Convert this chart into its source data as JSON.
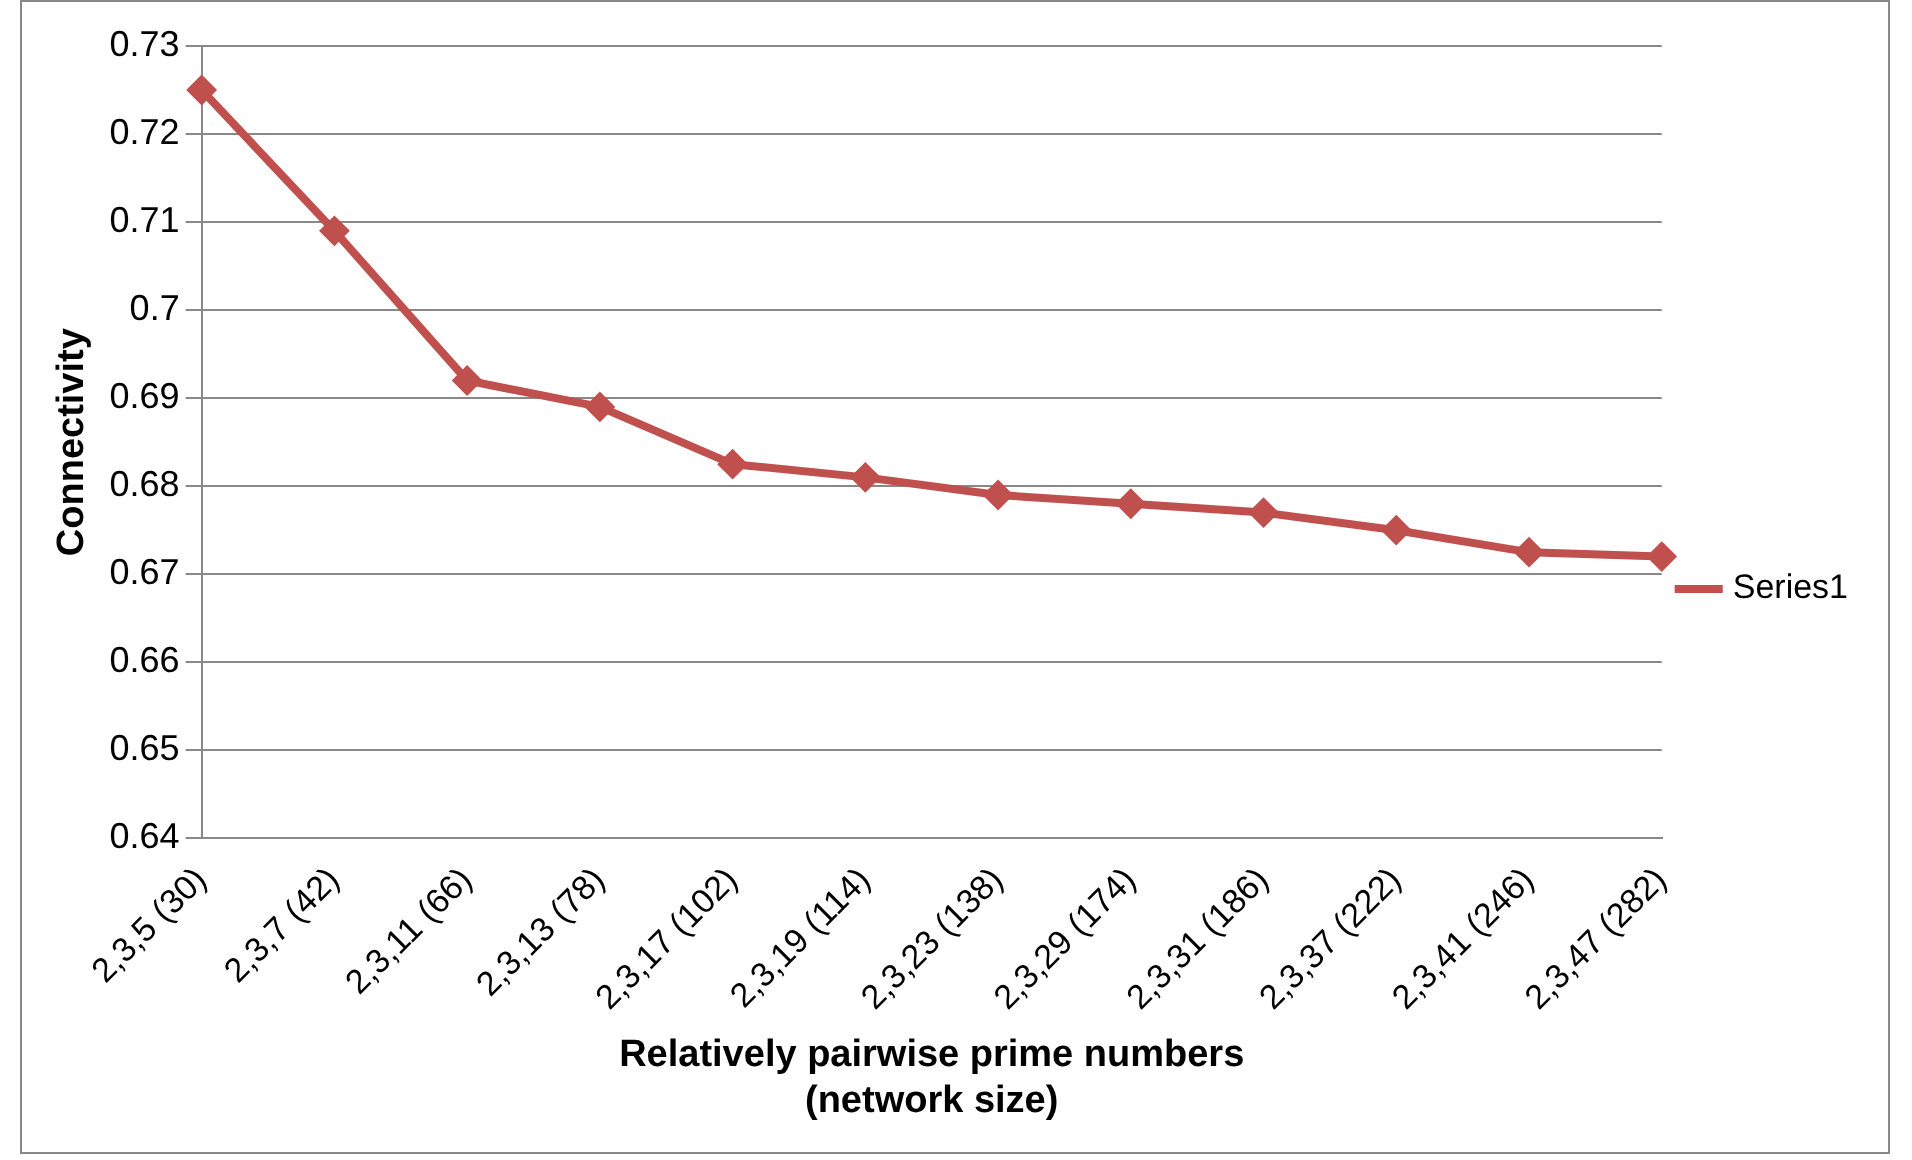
{
  "chart_data": {
    "type": "line",
    "xlabel": "Relatively pairwise prime numbers\n(network size)",
    "ylabel": "Connectivity",
    "categories": [
      "2,3,5 (30)",
      "2,3,7 (42)",
      "2,3,11 (66)",
      "2,3,13 (78)",
      "2,3,17 (102)",
      "2,3,19 (114)",
      "2,3,23 (138)",
      "2,3,29 (174)",
      "2,3,31 (186)",
      "2,3,37 (222)",
      "2,3,41 (246)",
      "2,3,47 (282)"
    ],
    "series": [
      {
        "name": "Series1",
        "color": "#c0504d",
        "values": [
          0.725,
          0.709,
          0.692,
          0.689,
          0.6825,
          0.681,
          0.679,
          0.678,
          0.677,
          0.675,
          0.6725,
          0.672
        ]
      }
    ],
    "ylim": [
      0.64,
      0.73
    ],
    "yticks": [
      0.64,
      0.65,
      0.66,
      0.67,
      0.68,
      0.69,
      0.7,
      0.71,
      0.72,
      0.73
    ],
    "grid": "y",
    "legend": "right",
    "marker": "diamond",
    "line_style": "solid"
  }
}
